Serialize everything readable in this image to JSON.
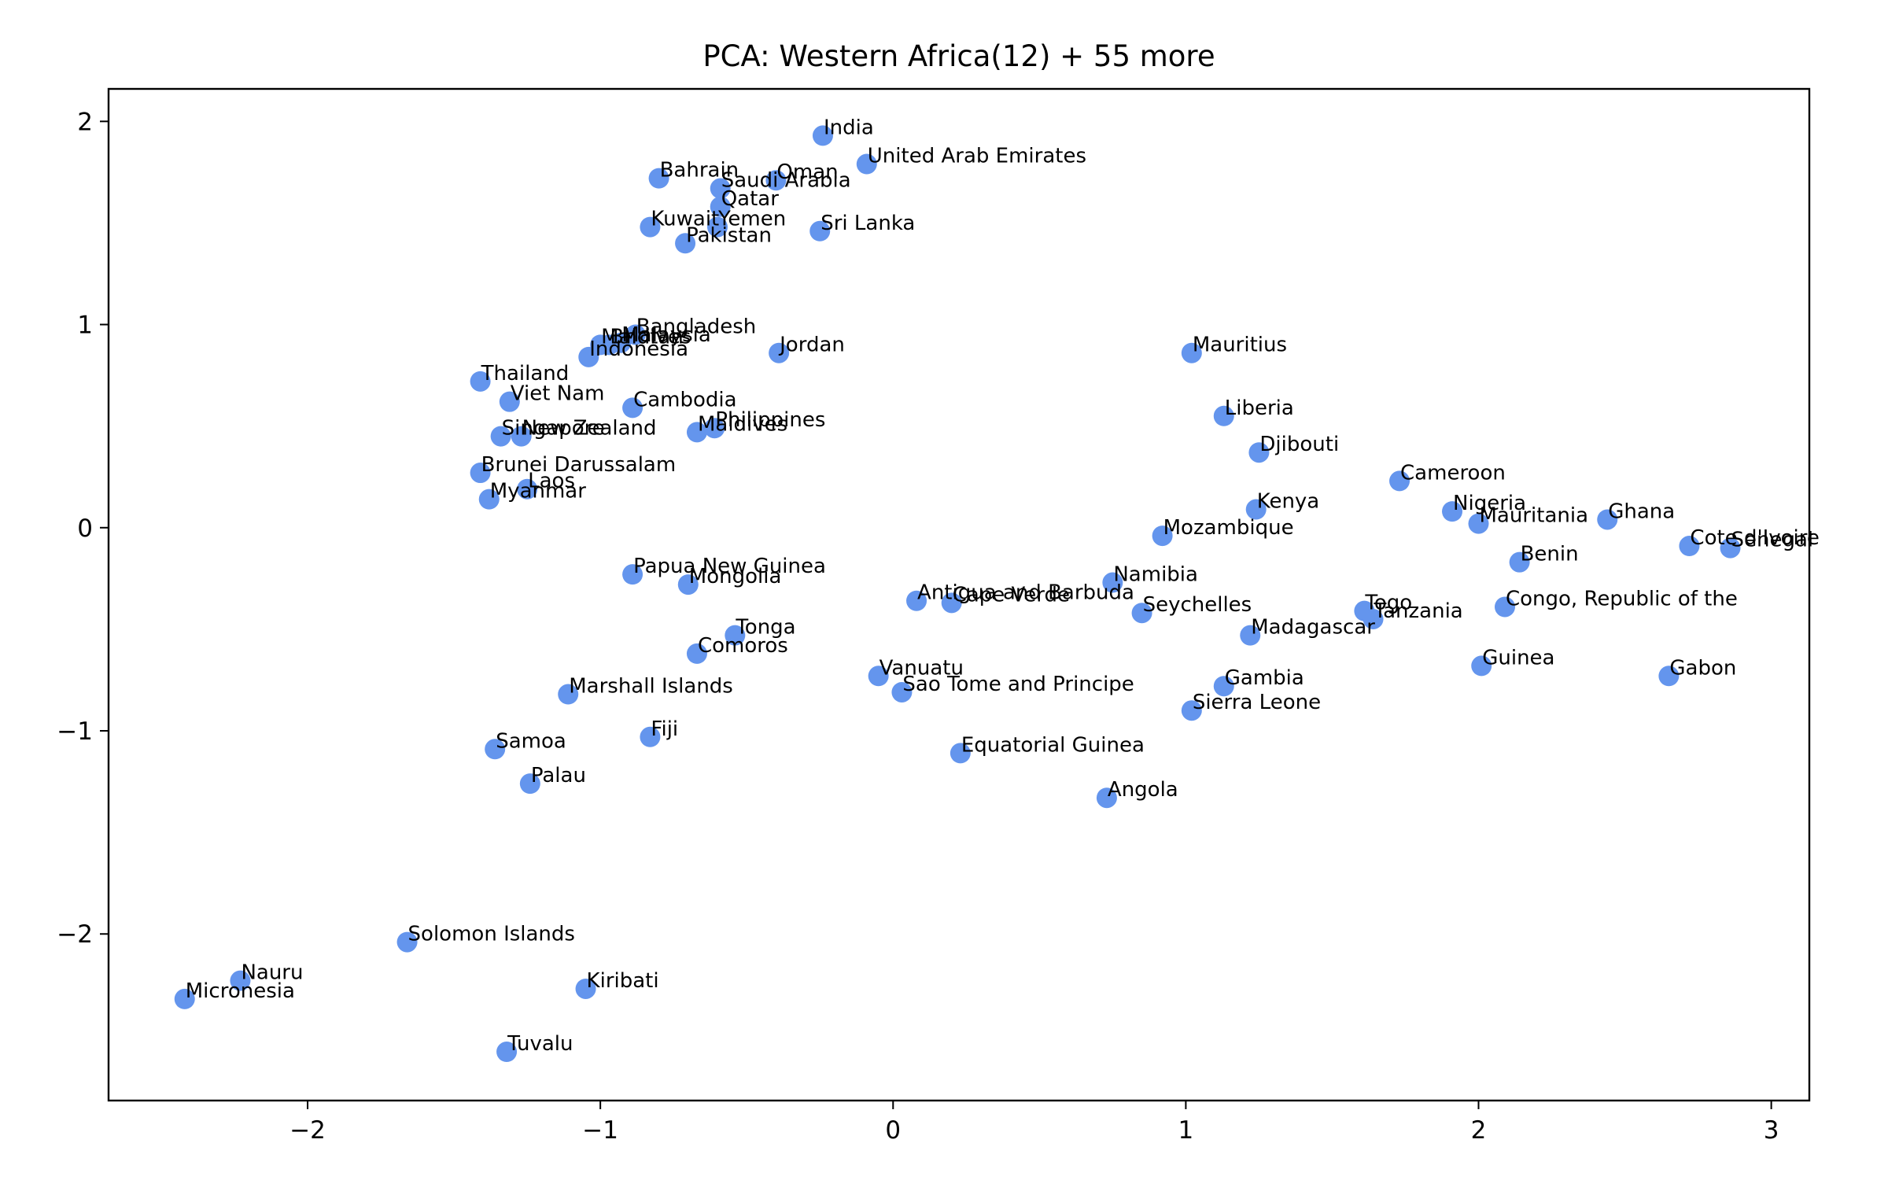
{
  "chart_data": {
    "type": "scatter",
    "title": "PCA: Western Africa(12) + 55 more",
    "xlabel": "",
    "ylabel": "",
    "xlim": [
      -2.68,
      3.13
    ],
    "ylim": [
      -2.82,
      2.16
    ],
    "xticks": [
      -2,
      -1,
      0,
      1,
      2,
      3
    ],
    "yticks": [
      -2,
      -1,
      0,
      1,
      2
    ],
    "xtick_labels": [
      "−2",
      "−1",
      "0",
      "1",
      "2",
      "3"
    ],
    "ytick_labels": [
      "−2",
      "−1",
      "0",
      "1",
      "2"
    ],
    "grid": false,
    "color": "#6495ED",
    "points": [
      {
        "label": "India",
        "x": -0.24,
        "y": 1.93
      },
      {
        "label": "United Arab Emirates",
        "x": -0.09,
        "y": 1.79
      },
      {
        "label": "Bahrain",
        "x": -0.8,
        "y": 1.72
      },
      {
        "label": "Oman",
        "x": -0.4,
        "y": 1.71
      },
      {
        "label": "Saudi Arabia",
        "x": -0.59,
        "y": 1.67
      },
      {
        "label": "Qatar",
        "x": -0.59,
        "y": 1.58
      },
      {
        "label": "Yemen",
        "x": -0.6,
        "y": 1.48
      },
      {
        "label": "Kuwait",
        "x": -0.83,
        "y": 1.48
      },
      {
        "label": "Sri Lanka",
        "x": -0.25,
        "y": 1.46
      },
      {
        "label": "Pakistan",
        "x": -0.71,
        "y": 1.4
      },
      {
        "label": "Bangladesh",
        "x": -0.88,
        "y": 0.95
      },
      {
        "label": "Malaysia",
        "x": -0.93,
        "y": 0.91
      },
      {
        "label": "Maldives",
        "x": -1.0,
        "y": 0.9
      },
      {
        "label": "Bhutan",
        "x": -0.97,
        "y": 0.9
      },
      {
        "label": "Indonesia",
        "x": -1.04,
        "y": 0.84
      },
      {
        "label": "Jordan",
        "x": -0.39,
        "y": 0.86
      },
      {
        "label": "Thailand",
        "x": -1.41,
        "y": 0.72
      },
      {
        "label": "Viet Nam",
        "x": -1.31,
        "y": 0.62
      },
      {
        "label": "Cambodia",
        "x": -0.89,
        "y": 0.59
      },
      {
        "label": "Philippines",
        "x": -0.61,
        "y": 0.49
      },
      {
        "label": "Maldives",
        "x": -0.67,
        "y": 0.47
      },
      {
        "label": "Singapore",
        "x": -1.34,
        "y": 0.45
      },
      {
        "label": "New Zealand",
        "x": -1.27,
        "y": 0.45
      },
      {
        "label": "Brunei Darussalam",
        "x": -1.41,
        "y": 0.27
      },
      {
        "label": "Laos",
        "x": -1.25,
        "y": 0.19
      },
      {
        "label": "Myanmar",
        "x": -1.38,
        "y": 0.14
      },
      {
        "label": "Mauritius",
        "x": 1.02,
        "y": 0.86
      },
      {
        "label": "Liberia",
        "x": 1.13,
        "y": 0.55
      },
      {
        "label": "Djibouti",
        "x": 1.25,
        "y": 0.37
      },
      {
        "label": "Cameroon",
        "x": 1.73,
        "y": 0.23
      },
      {
        "label": "Nigeria",
        "x": 1.91,
        "y": 0.08
      },
      {
        "label": "Mauritania",
        "x": 2.0,
        "y": 0.02
      },
      {
        "label": "Ghana",
        "x": 2.44,
        "y": 0.04
      },
      {
        "label": "Cote d'Ivoire",
        "x": 2.72,
        "y": -0.09
      },
      {
        "label": "Senegal",
        "x": 2.86,
        "y": -0.1
      },
      {
        "label": "Kenya",
        "x": 1.24,
        "y": 0.09
      },
      {
        "label": "Mozambique",
        "x": 0.92,
        "y": -0.04
      },
      {
        "label": "Benin",
        "x": 2.14,
        "y": -0.17
      },
      {
        "label": "Papua New Guinea",
        "x": -0.89,
        "y": -0.23
      },
      {
        "label": "Mongolia",
        "x": -0.7,
        "y": -0.28
      },
      {
        "label": "Namibia",
        "x": 0.75,
        "y": -0.27
      },
      {
        "label": "Antigua and Barbuda",
        "x": 0.08,
        "y": -0.36
      },
      {
        "label": "Cape Verde",
        "x": 0.2,
        "y": -0.37
      },
      {
        "label": "Seychelles",
        "x": 0.85,
        "y": -0.42
      },
      {
        "label": "Togo",
        "x": 1.61,
        "y": -0.41
      },
      {
        "label": "Tanzania",
        "x": 1.64,
        "y": -0.45
      },
      {
        "label": "Congo, Republic of the",
        "x": 2.09,
        "y": -0.39
      },
      {
        "label": "Madagascar",
        "x": 1.22,
        "y": -0.53
      },
      {
        "label": "Tonga",
        "x": -0.54,
        "y": -0.53
      },
      {
        "label": "Comoros",
        "x": -0.67,
        "y": -0.62
      },
      {
        "label": "Guinea",
        "x": 2.01,
        "y": -0.68
      },
      {
        "label": "Gabon",
        "x": 2.65,
        "y": -0.73
      },
      {
        "label": "Vanuatu",
        "x": -0.05,
        "y": -0.73
      },
      {
        "label": "Sao Tome and Principe",
        "x": 0.03,
        "y": -0.81
      },
      {
        "label": "Gambia",
        "x": 1.13,
        "y": -0.78
      },
      {
        "label": "Sierra Leone",
        "x": 1.02,
        "y": -0.9
      },
      {
        "label": "Marshall Islands",
        "x": -1.11,
        "y": -0.82
      },
      {
        "label": "Fiji",
        "x": -0.83,
        "y": -1.03
      },
      {
        "label": "Samoa",
        "x": -1.36,
        "y": -1.09
      },
      {
        "label": "Equatorial Guinea",
        "x": 0.23,
        "y": -1.11
      },
      {
        "label": "Palau",
        "x": -1.24,
        "y": -1.26
      },
      {
        "label": "Angola",
        "x": 0.73,
        "y": -1.33
      },
      {
        "label": "Solomon Islands",
        "x": -1.66,
        "y": -2.04
      },
      {
        "label": "Nauru",
        "x": -2.23,
        "y": -2.23
      },
      {
        "label": "Micronesia",
        "x": -2.42,
        "y": -2.32
      },
      {
        "label": "Kiribati",
        "x": -1.05,
        "y": -2.27
      },
      {
        "label": "Tuvalu",
        "x": -1.32,
        "y": -2.58
      }
    ]
  }
}
